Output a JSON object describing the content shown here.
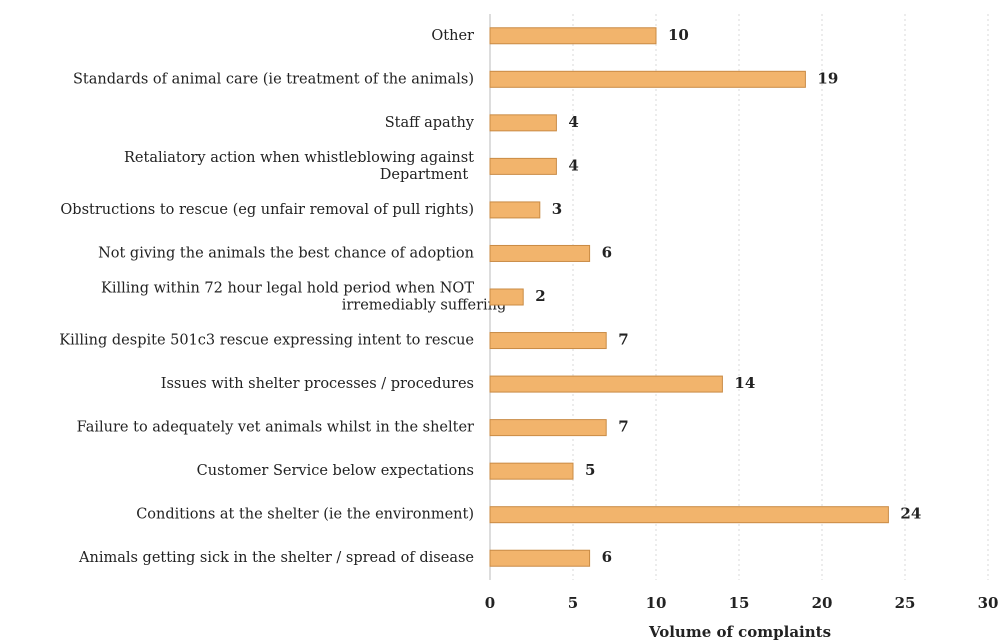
{
  "chart_data": {
    "type": "bar",
    "orientation": "horizontal",
    "xlabel": "Volume of complaints",
    "categories": [
      "Other",
      "Standards of animal care (ie treatment of the animals)",
      "Staff apathy",
      "Retaliatory action when whistleblowing against\nDepartment",
      "Obstructions to rescue (eg unfair removal of pull rights)",
      "Not giving the animals the best chance of adoption",
      "Killing within 72 hour legal hold period when NOT\nirremediably suffering",
      "Killing despite 501c3 rescue expressing intent to rescue",
      "Issues with shelter processes / procedures",
      "Failure to adequately vet animals whilst in the shelter",
      "Customer Service below expectations",
      "Conditions at the shelter (ie the environment)",
      "Animals getting sick in the shelter / spread of disease"
    ],
    "values": [
      10,
      19,
      4,
      4,
      3,
      6,
      2,
      7,
      14,
      7,
      5,
      24,
      6
    ],
    "color": "#f2b46c",
    "xlim": [
      0,
      30
    ],
    "xticks": [
      0,
      5,
      10,
      15,
      20,
      25,
      30
    ],
    "grid": true
  }
}
